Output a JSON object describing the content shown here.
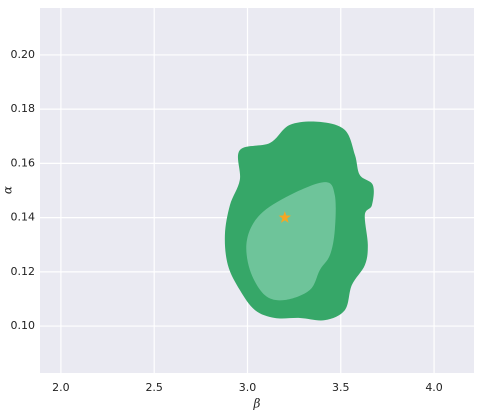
{
  "chart_data": {
    "type": "contour",
    "xlabel": "β",
    "ylabel": "α",
    "xlim": [
      1.888,
      4.214
    ],
    "ylim": [
      0.0827,
      0.2173
    ],
    "xticks": [
      {
        "value": 2,
        "label": "2.0"
      },
      2.5,
      {
        "value": 3,
        "label": "3.0"
      },
      3.5,
      {
        "value": 4,
        "label": "4.0"
      }
    ],
    "yticks": [
      {
        "value": 0.1,
        "label": "0.10"
      },
      0.12,
      0.14,
      0.16,
      0.18,
      {
        "value": 0.2,
        "label": "0.20"
      }
    ],
    "grid": true,
    "series": [
      {
        "color": "#36a768",
        "x": [
          2.959,
          3.12,
          3.227,
          3.388,
          3.522,
          3.576,
          3.602,
          3.672,
          3.667,
          3.629,
          3.645,
          3.629,
          3.559,
          3.522,
          3.415,
          3.281,
          3.147,
          3.04,
          2.959,
          2.895,
          2.879,
          2.906,
          2.959
        ],
        "y": [
          0.1649,
          0.1675,
          0.1742,
          0.1753,
          0.1723,
          0.1631,
          0.1557,
          0.152,
          0.1446,
          0.141,
          0.1299,
          0.1225,
          0.1151,
          0.1059,
          0.1022,
          0.103,
          0.103,
          0.1059,
          0.1133,
          0.1225,
          0.1336,
          0.1446,
          0.1539
        ]
      },
      {
        "color": "#6ec49a",
        "x": [
          3.227,
          3.415,
          3.468,
          3.468,
          3.442,
          3.388,
          3.334,
          3.2,
          3.093,
          3.013,
          2.997,
          3.066
        ],
        "y": [
          0.1483,
          0.1531,
          0.1483,
          0.1354,
          0.1262,
          0.1207,
          0.1133,
          0.1096,
          0.1114,
          0.1207,
          0.1317,
          0.141
        ]
      }
    ],
    "marker": {
      "x": 3.2,
      "y": 0.14,
      "color": "#f5a623"
    }
  }
}
